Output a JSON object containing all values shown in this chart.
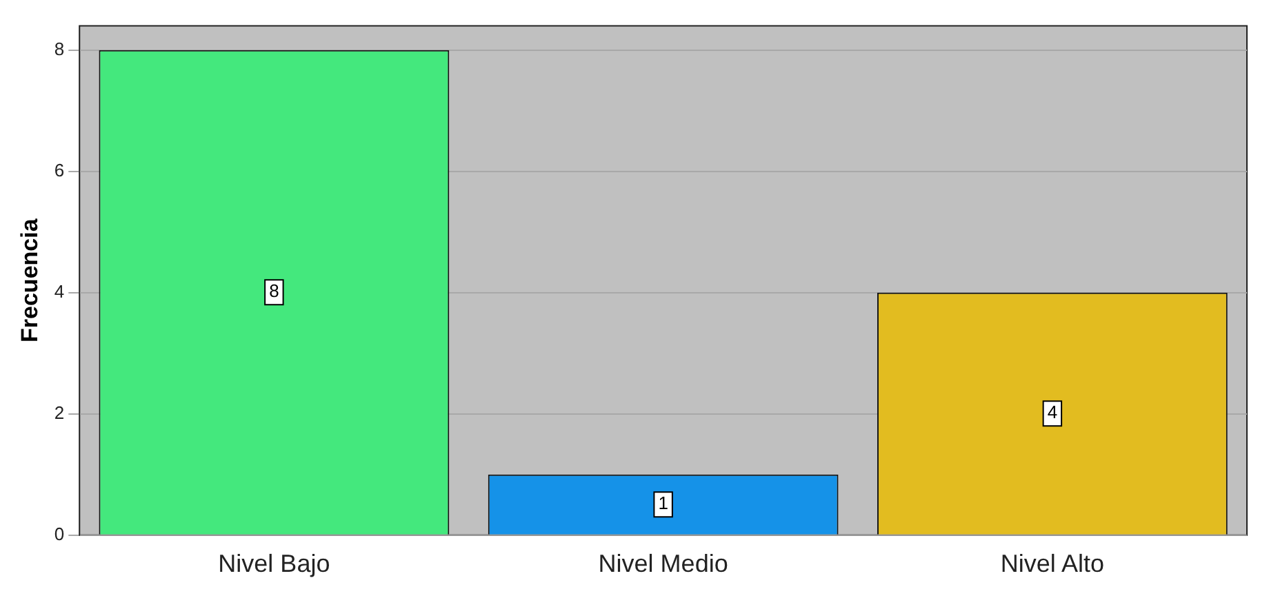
{
  "chart_data": {
    "type": "bar",
    "ylabel": "Frecuencia",
    "categories": [
      "Nivel Bajo",
      "Nivel Medio",
      "Nivel Alto"
    ],
    "values": [
      8,
      1,
      4
    ],
    "colors": [
      "#44e87d",
      "#1592e8",
      "#e2bc20"
    ],
    "ylim": [
      0,
      8.4
    ],
    "yticks": [
      0,
      2,
      4,
      6,
      8
    ],
    "grid": "y",
    "data_labels": true
  }
}
